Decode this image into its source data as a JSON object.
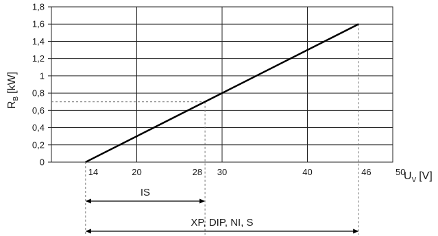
{
  "chart_data": {
    "type": "line",
    "title": "",
    "ylabel": {
      "main": "R",
      "sub": "B",
      "unit": "[kW]"
    },
    "xlabel": {
      "main": "U",
      "sub": "V",
      "unit": "[V]"
    },
    "xlim": [
      10,
      50
    ],
    "ylim": [
      0,
      1.8
    ],
    "grid": true,
    "y_ticks": [
      {
        "value": 0,
        "label": "0"
      },
      {
        "value": 0.2,
        "label": "0,2"
      },
      {
        "value": 0.4,
        "label": "0,4"
      },
      {
        "value": 0.6,
        "label": "0,6"
      },
      {
        "value": 0.8,
        "label": "0,8"
      },
      {
        "value": 1.0,
        "label": "1"
      },
      {
        "value": 1.2,
        "label": "1,2"
      },
      {
        "value": 1.4,
        "label": "1,4"
      },
      {
        "value": 1.6,
        "label": "1,6"
      },
      {
        "value": 1.8,
        "label": "1,8"
      }
    ],
    "x_gridlines": [
      20,
      30,
      40
    ],
    "x_tick_labels": [
      {
        "value": 14,
        "label": "14",
        "anchor": "start"
      },
      {
        "value": 20,
        "label": "20",
        "anchor": "middle"
      },
      {
        "value": 28,
        "label": "28",
        "anchor": "end"
      },
      {
        "value": 30,
        "label": "30",
        "anchor": "middle"
      },
      {
        "value": 40,
        "label": "40",
        "anchor": "middle"
      },
      {
        "value": 46,
        "label": "46",
        "anchor": "start"
      },
      {
        "value": 50,
        "label": "50",
        "anchor": "start"
      }
    ],
    "series": [
      {
        "x": [
          14,
          46
        ],
        "y": [
          0,
          1.6
        ]
      }
    ],
    "reference_lines": {
      "x": 28,
      "y": 0.7,
      "style": "dashed"
    },
    "annotations": [
      {
        "label": "IS",
        "x_range": [
          14,
          28
        ]
      },
      {
        "label": "XP, DIP, NI, S",
        "x_range": [
          14,
          46
        ]
      }
    ]
  }
}
